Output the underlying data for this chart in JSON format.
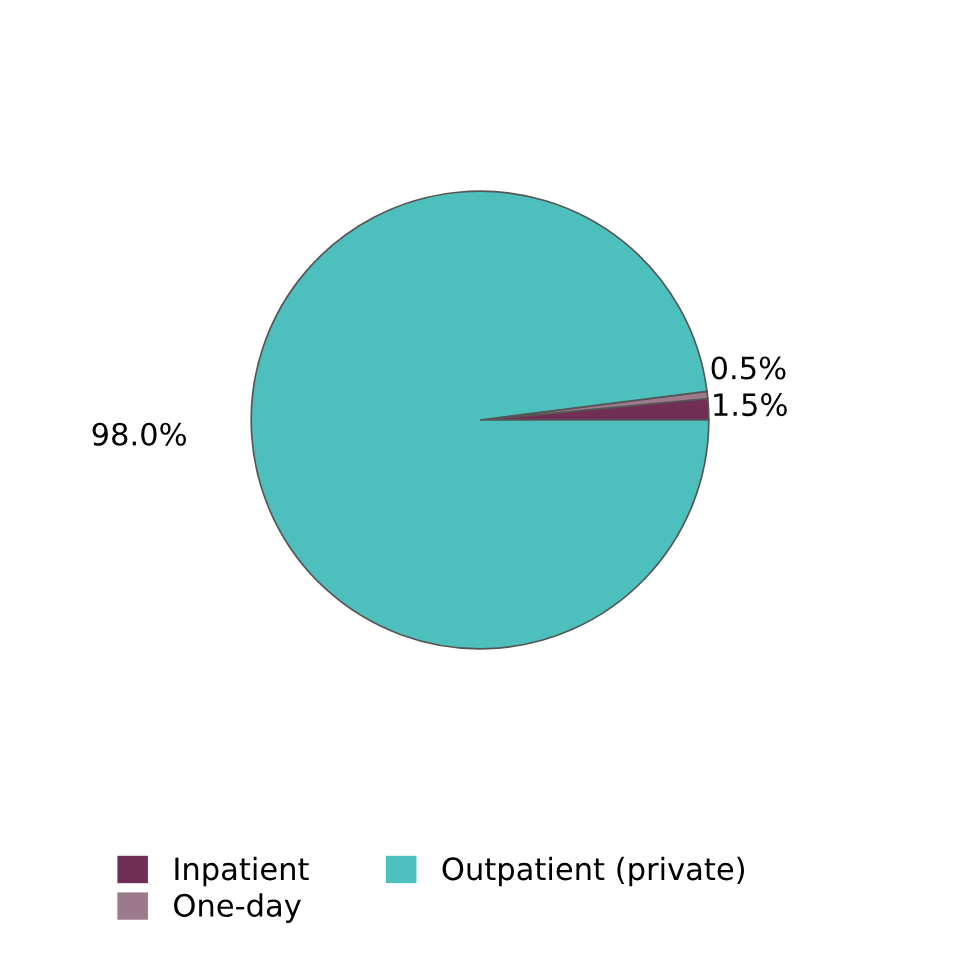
{
  "chart_data": {
    "type": "pie",
    "categories": [
      "Inpatient",
      "One-day",
      "Outpatient (private)"
    ],
    "values": [
      1.5,
      0.5,
      98.0
    ],
    "colors": [
      "#722f55",
      "#9c7a8c",
      "#4dbfbd"
    ],
    "value_labels": [
      "1.5%",
      "0.5%",
      "98.0%"
    ],
    "legend": "bottom"
  }
}
